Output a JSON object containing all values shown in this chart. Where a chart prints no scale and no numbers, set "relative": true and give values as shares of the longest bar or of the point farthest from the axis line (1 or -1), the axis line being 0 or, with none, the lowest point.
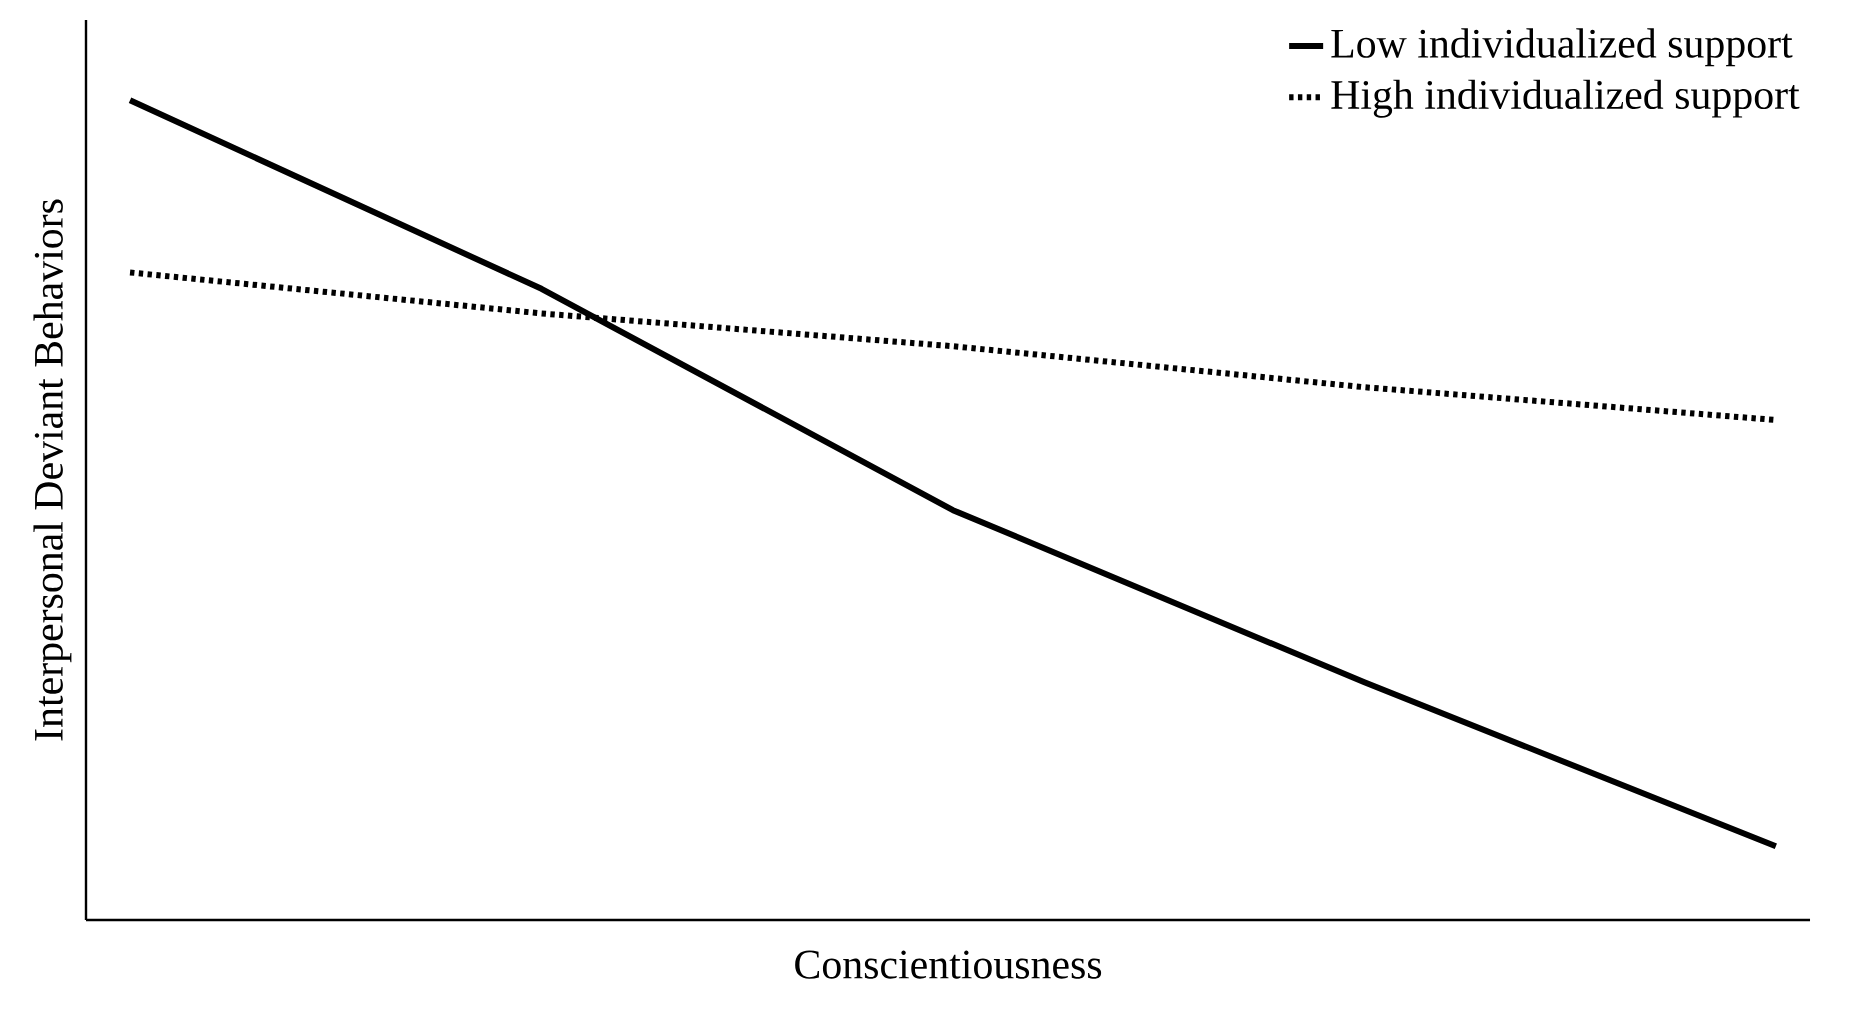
{
  "chart_data": {
    "type": "line",
    "relative": true,
    "xlabel": "Conscientiousness",
    "ylabel": "Interpersonal Deviant Behaviors",
    "categories": [
      null,
      null,
      null,
      null,
      null
    ],
    "series": [
      {
        "name": "Low individualized support",
        "color": "#000000",
        "line_style": "solid",
        "values": [
          1,
          0.77,
          0.5,
          0.29,
          0.09
        ]
      },
      {
        "name": "High individualized support",
        "color": "#000000",
        "line_style": "dotted",
        "values": [
          0.79,
          0.74,
          0.7,
          0.65,
          0.61
        ]
      }
    ],
    "legend": "top right",
    "marker": "none"
  }
}
